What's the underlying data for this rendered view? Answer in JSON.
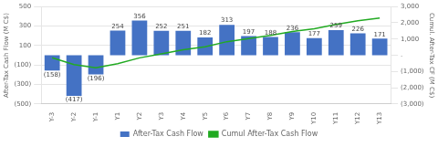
{
  "chart_data": {
    "type": "bar",
    "categories": [
      "Y-3",
      "Y-2",
      "Y-1",
      "Y1",
      "Y2",
      "Y3",
      "Y4",
      "Y5",
      "Y6",
      "Y7",
      "Y8",
      "Y9",
      "Y10",
      "Y11",
      "Y12",
      "Y13"
    ],
    "series": [
      {
        "name": "After-Tax Cash Flow",
        "type": "bar",
        "color": "#4472C4",
        "values": [
          -158,
          -417,
          -196,
          254,
          356,
          252,
          251,
          182,
          313,
          197,
          188,
          236,
          177,
          259,
          226,
          171
        ],
        "value_labels": [
          "(158)",
          "(417)",
          "(196)",
          "254",
          "356",
          "252",
          "251",
          "182",
          "313",
          "197",
          "188",
          "236",
          "177",
          "259",
          "226",
          "171"
        ],
        "data_labels": true
      },
      {
        "name": "Cumul After-Tax Cash Flow",
        "type": "line",
        "color": "#22AA22",
        "axis": "y2",
        "values": [
          -158,
          -575,
          -771,
          -517,
          -161,
          91,
          342,
          524,
          837,
          1034,
          1222,
          1458,
          1635,
          1894,
          2120,
          2291
        ]
      }
    ],
    "ylabel": "After-Tax Cash Flow (M C$)",
    "y2label": "Cumul. After-Tax CF (M C$)",
    "ylim": [
      -500,
      500
    ],
    "yticks": [
      {
        "value": -500,
        "label": "(500)"
      },
      {
        "value": -300,
        "label": "(300)"
      },
      {
        "value": -100,
        "label": "(100)"
      },
      100,
      300,
      500
    ],
    "y2lim": [
      -3000,
      3000
    ],
    "y2ticks": [
      {
        "value": -3000,
        "label": "(3,000)"
      },
      {
        "value": -2000,
        "label": "(2,000)"
      },
      {
        "value": -1000,
        "label": "(1,000)"
      },
      {
        "value": 0,
        "label": "."
      },
      {
        "value": 1000,
        "label": "1,000"
      },
      {
        "value": 2000,
        "label": "2,000"
      },
      {
        "value": 3000,
        "label": "3,000"
      }
    ],
    "grid": true,
    "legend": "lower center"
  }
}
